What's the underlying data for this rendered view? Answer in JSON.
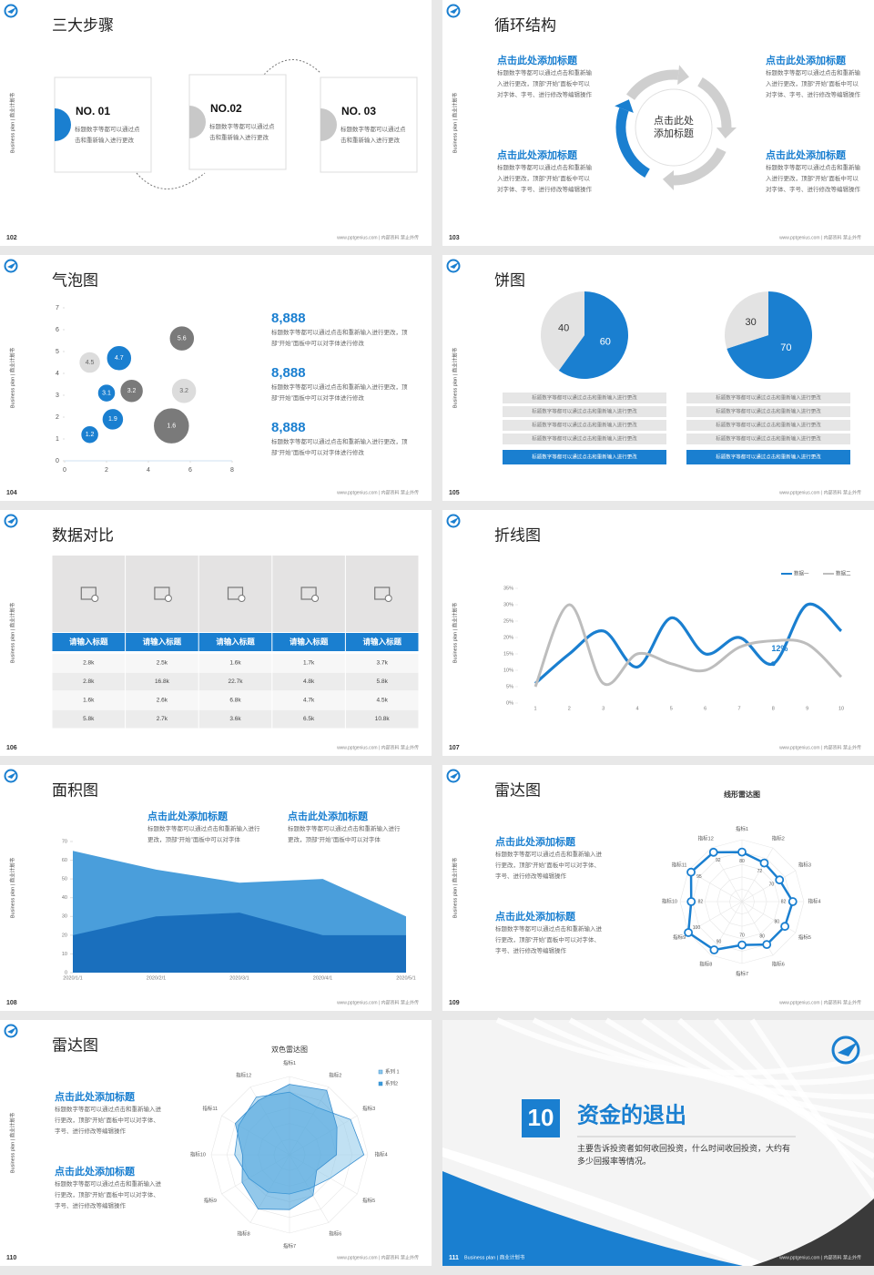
{
  "side_label": "Business plan | 商业计划书",
  "footer": "www.pptgenius.com | 内部资料 禁止外传",
  "slides": [
    {
      "number": "102",
      "title": "三大步骤",
      "steps": [
        {
          "label": "NO. 01",
          "text": "标题数字等都可以通过点击和重新输入进行更改"
        },
        {
          "label": "NO.02",
          "text": "标题数字等都可以通过点击和重新输入进行更改"
        },
        {
          "label": "NO. 03",
          "text": "标题数字等都可以通过点击和重新输入进行更改"
        }
      ]
    },
    {
      "number": "103",
      "title": "循环结构",
      "center": [
        "点击此处",
        "添加标题"
      ],
      "blocks": [
        {
          "heading": "点击此处添加标题",
          "text": "标题数字等都可以通过点击和重新输入进行更改，顶部“开始”面板中可以对字体、字号、进行修改等编辑操作"
        },
        {
          "heading": "点击此处添加标题",
          "text": "标题数字等都可以通过点击和重新输入进行更改，顶部“开始”面板中可以对字体、字号、进行修改等编辑操作"
        },
        {
          "heading": "点击此处添加标题",
          "text": "标题数字等都可以通过点击和重新输入进行更改，顶部“开始”面板中可以对字体、字号、进行修改等编辑操作"
        },
        {
          "heading": "点击此处添加标题",
          "text": "标题数字等都可以通过点击和重新输入进行更改，顶部“开始”面板中可以对字体、字号、进行修改等编辑操作"
        }
      ]
    },
    {
      "number": "104",
      "title": "气泡图",
      "chart_data": {
        "type": "bubble",
        "xlim": [
          0,
          8
        ],
        "xticks": [
          0,
          2,
          4,
          6,
          8
        ],
        "ylim": [
          0,
          7
        ],
        "yticks": [
          0,
          1,
          2,
          3,
          4,
          5,
          6,
          7
        ],
        "x": [
          1.2,
          2.3,
          2,
          3.2,
          1.2,
          2.6,
          5.6,
          5.7,
          5.1
        ],
        "values": [
          1.2,
          1.9,
          3.1,
          3.2,
          4.5,
          4.7,
          5.6,
          3.2,
          1.6
        ],
        "sizes": [
          10,
          12,
          10,
          13,
          12,
          14,
          14,
          14,
          20
        ],
        "colors": [
          "#1a7fd0",
          "#1a7fd0",
          "#1a7fd0",
          "#7a7a7a",
          "#dcdcdc",
          "#1a7fd0",
          "#7a7a7a",
          "#dcdcdc",
          "#7a7a7a"
        ]
      },
      "stats": [
        {
          "value": "8,888",
          "text": "标题数字等都可以通过点击和重新输入进行更改，顶部“开始”面板中可以对字体进行修改"
        },
        {
          "value": "8,888",
          "text": "标题数字等都可以通过点击和重新输入进行更改，顶部“开始”面板中可以对字体进行修改"
        },
        {
          "value": "8,888",
          "text": "标题数字等都可以通过点击和重新输入进行更改，顶部“开始”面板中可以对字体进行修改"
        }
      ]
    },
    {
      "number": "105",
      "title": "饼图",
      "charts": [
        {
          "type": "pie",
          "values": [
            60,
            40
          ],
          "colors": [
            "#1a7fd0",
            "#e3e3e3"
          ]
        },
        {
          "type": "pie",
          "values": [
            70,
            30
          ],
          "colors": [
            "#1a7fd0",
            "#e3e3e3"
          ]
        }
      ],
      "lists": [
        [
          "标题数字等都可以通过点击和重新输入进行更改",
          "标题数字等都可以通过点击和重新输入进行更改",
          "标题数字等都可以通过点击和重新输入进行更改",
          "标题数字等都可以通过点击和重新输入进行更改",
          "标题数字等都可以通过点击和重新输入进行更改"
        ],
        [
          "标题数字等都可以通过点击和重新输入进行更改",
          "标题数字等都可以通过点击和重新输入进行更改",
          "标题数字等都可以通过点击和重新输入进行更改",
          "标题数字等都可以通过点击和重新输入进行更改",
          "标题数字等都可以通过点击和重新输入进行更改"
        ]
      ]
    },
    {
      "number": "106",
      "title": "数据对比",
      "table": {
        "header": [
          "请输入标题",
          "请输入标题",
          "请输入标题",
          "请输入标题",
          "请输入标题"
        ],
        "rows": [
          [
            "2.8k",
            "2.5k",
            "1.6k",
            "1.7k",
            "3.7k"
          ],
          [
            "2.8k",
            "16.8k",
            "22.7k",
            "4.8k",
            "5.8k"
          ],
          [
            "1.6k",
            "2.6k",
            "6.8k",
            "4.7k",
            "4.5k"
          ],
          [
            "5.8k",
            "2.7k",
            "3.6k",
            "6.5k",
            "10.8k"
          ]
        ]
      }
    },
    {
      "number": "107",
      "title": "折线图",
      "chart_data": {
        "type": "line",
        "x": [
          1,
          2,
          3,
          4,
          5,
          6,
          7,
          8,
          9,
          10
        ],
        "xlim": [
          1,
          10
        ],
        "xticks": [
          1,
          2,
          3,
          4,
          5,
          6,
          7,
          8,
          9,
          10
        ],
        "ylim": [
          0,
          35
        ],
        "yticks": [
          {
            "value": 0,
            "label": "0%"
          },
          {
            "value": 5,
            "label": "5%"
          },
          {
            "value": 10,
            "label": "10%"
          },
          {
            "value": 15,
            "label": "15%"
          },
          {
            "value": 20,
            "label": "20%"
          },
          {
            "value": 25,
            "label": "25%"
          },
          {
            "value": 30,
            "label": "30%"
          },
          {
            "value": 35,
            "label": "35%"
          }
        ],
        "series": [
          {
            "name": "数据一",
            "color": "#1a7fd0",
            "values": [
              6,
              15,
              22,
              11,
              26,
              15,
              20,
              12,
              30,
              22
            ],
            "value_labels": [
              null,
              null,
              null,
              null,
              null,
              null,
              null,
              "12%",
              null,
              null
            ]
          },
          {
            "name": "数据二",
            "color": "#bdbdbd",
            "values": [
              5,
              30,
              6,
              15,
              12,
              10,
              17,
              19,
              18,
              8
            ]
          }
        ]
      }
    },
    {
      "number": "108",
      "title": "面积图",
      "chart_data": {
        "type": "area",
        "categories": [
          "2020/1/1",
          "2020/2/1",
          "2020/3/1",
          "2020/4/1",
          "2020/5/1"
        ],
        "ylim": [
          0,
          70
        ],
        "yticks": [
          0,
          10,
          20,
          30,
          40,
          50,
          60,
          70
        ],
        "series": [
          {
            "color": "#4a9edb",
            "values": [
              65,
              55,
              48,
              50,
              30
            ]
          },
          {
            "color": "#1a6fbd",
            "values": [
              20,
              30,
              32,
              20,
              20
            ]
          }
        ]
      },
      "blocks": [
        {
          "heading": "点击此处添加标题",
          "text": "标题数字等都可以通过点击和重新输入进行更改，顶部“开始”面板中可以对字体"
        },
        {
          "heading": "点击此处添加标题",
          "text": "标题数字等都可以通过点击和重新输入进行更改，顶部“开始”面板中可以对字体"
        }
      ]
    },
    {
      "number": "109",
      "title": "雷达图",
      "chart_data": {
        "type": "radar",
        "title": "线形雷达图",
        "categories": [
          "指标1",
          "指标2",
          "指标3",
          "指标4",
          "指标5",
          "指标6",
          "指标7",
          "指标8",
          "指标9",
          "指标10",
          "指标11",
          "指标12"
        ],
        "rlim": [
          0,
          100
        ],
        "series": [
          {
            "color": "#1a7fd0",
            "values": [
              80,
              72,
              70,
              82,
              80,
              80,
              70,
              90,
              100,
              82,
              95,
              92
            ]
          }
        ]
      },
      "blocks": [
        {
          "heading": "点击此处添加标题",
          "text": "标题数字等都可以通过点击和重新输入进行更改，顶部“开始”面板中可以对字体、字号、进行修改等编辑操作"
        },
        {
          "heading": "点击此处添加标题",
          "text": "标题数字等都可以通过点击和重新输入进行更改，顶部“开始”面板中可以对字体、字号、进行修改等编辑操作"
        }
      ]
    },
    {
      "number": "110",
      "title": "雷达图",
      "chart_data": {
        "type": "radar",
        "title": "双色雷达图",
        "categories": [
          "指标1",
          "指标2",
          "指标3",
          "指标4",
          "指标5",
          "指标6",
          "指标7",
          "指标8",
          "指标9",
          "指标10",
          "指标11",
          "指标12"
        ],
        "rlim": [
          0,
          100
        ],
        "series": [
          {
            "name": "系列 1",
            "color": "#8ec8ea",
            "values": [
              80,
              70,
              90,
              95,
              60,
              50,
              50,
              55,
              60,
              70,
              75,
              85
            ]
          },
          {
            "name": "系列2",
            "color": "#3a9ad9",
            "values": [
              90,
              95,
              70,
              60,
              40,
              60,
              70,
              80,
              70,
              60,
              80,
              80
            ]
          }
        ]
      },
      "blocks": [
        {
          "heading": "点击此处添加标题",
          "text": "标题数字等都可以通过点击和重新输入进行更改，顶部“开始”面板中可以对字体、字号、进行修改等编辑操作"
        },
        {
          "heading": "点击此处添加标题",
          "text": "标题数字等都可以通过点击和重新输入进行更改，顶部“开始”面板中可以对字体、字号、进行修改等编辑操作"
        }
      ]
    },
    {
      "number": "111",
      "section_number": "10",
      "title": "资金的退出",
      "text": "主要告诉投资者如何收回投资，什么时间收回投资，大约有多少回报率等情况。"
    }
  ]
}
